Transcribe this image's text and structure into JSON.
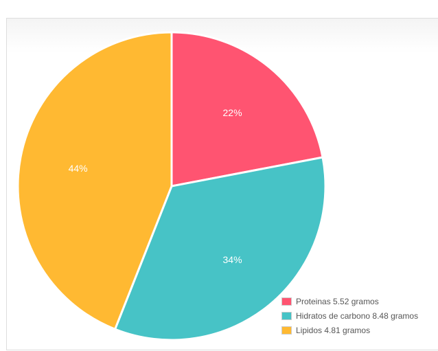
{
  "chart_data": {
    "type": "pie",
    "categories": [
      "Proteinas 5.52 gramos",
      "Hidratos de carbono 8.48 gramos",
      "Lipidos 4.81 gramos"
    ],
    "values": [
      5.52,
      8.48,
      4.81
    ],
    "percent_labels": [
      "22%",
      "34%",
      "44%"
    ],
    "percents": [
      22,
      34,
      44
    ],
    "colors": [
      "#ff5471",
      "#47c3c6",
      "#ffb932"
    ],
    "legend": "bottom-right"
  }
}
